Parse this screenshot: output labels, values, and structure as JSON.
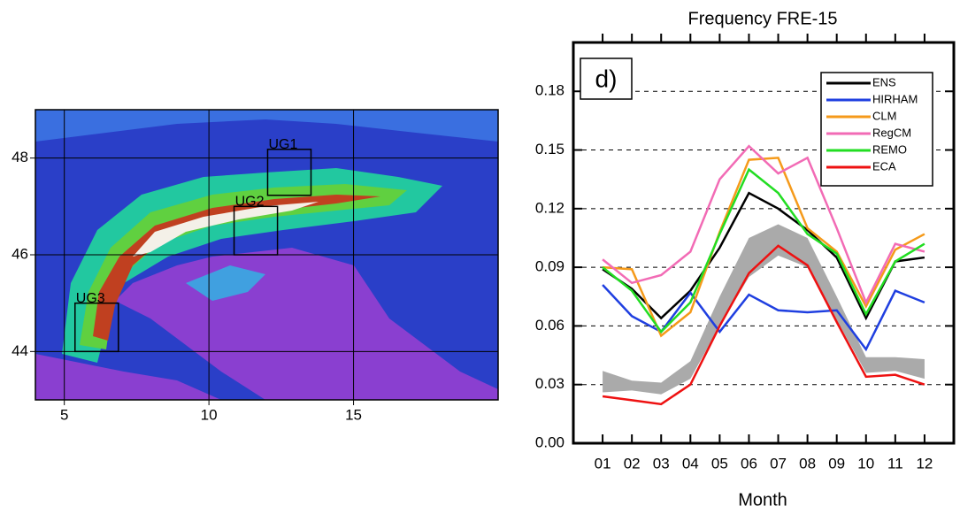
{
  "chart_data": [
    {
      "type": "map",
      "xlim": [
        4,
        20
      ],
      "ylim": [
        43,
        49
      ],
      "xticks": [
        5,
        10,
        15
      ],
      "yticks": [
        44,
        46,
        48
      ],
      "grid": true,
      "regions": [
        {
          "label": "UG1",
          "lon": [
            12.03,
            13.53
          ],
          "lat": [
            47.23,
            48.18
          ]
        },
        {
          "label": "UG2",
          "lon": [
            10.87,
            12.37
          ],
          "lat": [
            46.0,
            47.0
          ]
        },
        {
          "label": "UG3",
          "lon": [
            5.37,
            6.87
          ],
          "lat": [
            44.0,
            45.0
          ]
        }
      ]
    },
    {
      "type": "line",
      "title": "Frequency FRE-15",
      "xlabel": "Month",
      "annotation": "d)",
      "categories": [
        "01",
        "02",
        "03",
        "04",
        "05",
        "06",
        "07",
        "08",
        "09",
        "10",
        "11",
        "12"
      ],
      "ylim": [
        0,
        0.205
      ],
      "yticks": [
        {
          "value": 0,
          "label": "0.00"
        },
        0.03,
        0.06,
        0.09,
        0.12,
        0.15,
        0.18
      ],
      "grid": true,
      "legend": "top-right",
      "band": {
        "color": "#aaaaaa",
        "lower": [
          0.026,
          0.027,
          0.025,
          0.033,
          0.06,
          0.085,
          0.096,
          0.09,
          0.063,
          0.036,
          0.037,
          0.033
        ],
        "upper": [
          0.037,
          0.032,
          0.031,
          0.042,
          0.075,
          0.105,
          0.112,
          0.105,
          0.075,
          0.044,
          0.044,
          0.043
        ]
      },
      "series": [
        {
          "name": "ENS",
          "color": "#000000",
          "values": [
            0.089,
            0.079,
            0.064,
            0.078,
            0.1,
            0.128,
            0.12,
            0.109,
            0.095,
            0.064,
            0.093,
            0.095
          ]
        },
        {
          "name": "HIRHAM",
          "color": "#1f3fe0",
          "values": [
            0.081,
            0.065,
            0.057,
            0.077,
            0.057,
            0.076,
            0.068,
            0.067,
            0.068,
            0.048,
            0.078,
            0.072
          ]
        },
        {
          "name": "CLM",
          "color": "#f59a1a",
          "values": [
            0.09,
            0.089,
            0.055,
            0.067,
            0.108,
            0.145,
            0.146,
            0.11,
            0.098,
            0.07,
            0.099,
            0.107
          ]
        },
        {
          "name": "RegCM",
          "color": "#f26bb5",
          "values": [
            0.094,
            0.082,
            0.086,
            0.098,
            0.135,
            0.152,
            0.138,
            0.146,
            0.11,
            0.072,
            0.102,
            0.098
          ]
        },
        {
          "name": "REMO",
          "color": "#22dd22",
          "values": [
            0.09,
            0.078,
            0.057,
            0.072,
            0.107,
            0.14,
            0.128,
            0.107,
            0.097,
            0.066,
            0.093,
            0.102
          ]
        },
        {
          "name": "ECA",
          "color": "#ee1111",
          "values": [
            0.024,
            0.022,
            0.02,
            0.03,
            0.06,
            0.087,
            0.101,
            0.091,
            0.062,
            0.034,
            0.035,
            0.03
          ]
        }
      ]
    }
  ]
}
